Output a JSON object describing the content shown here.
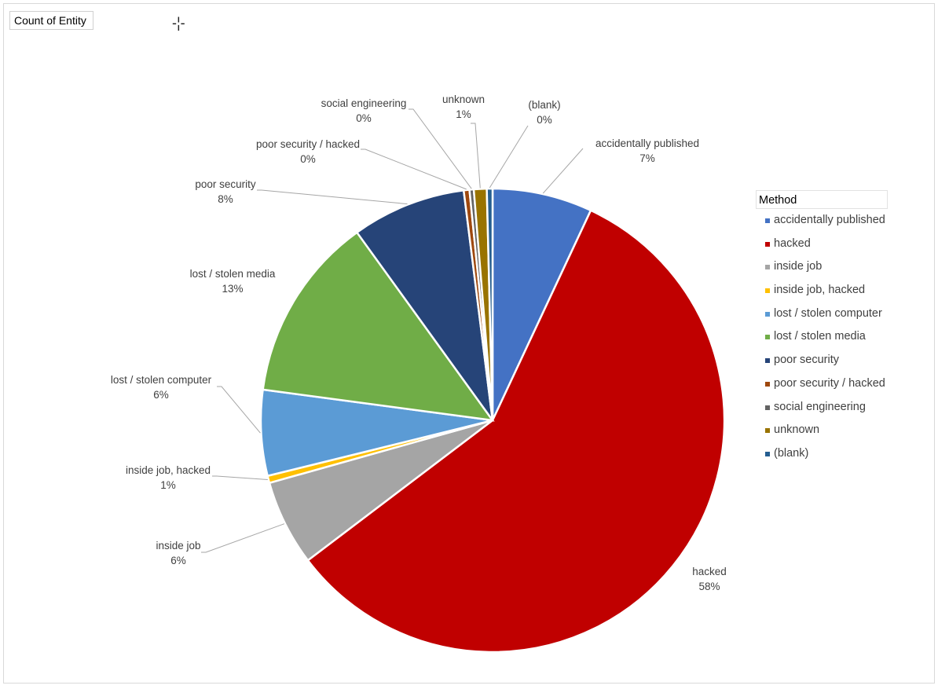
{
  "field_button": "Count of Entity",
  "legend_title": "Method",
  "chart_data": {
    "type": "pie",
    "title": "",
    "legend_position": "right",
    "slices": [
      {
        "name": "accidentally published",
        "value": 7,
        "label": "7%",
        "color": "#4472C4"
      },
      {
        "name": "hacked",
        "value": 58,
        "label": "58%",
        "color": "#C00000"
      },
      {
        "name": "inside job",
        "value": 6,
        "label": "6%",
        "color": "#A5A5A5"
      },
      {
        "name": "inside job, hacked",
        "value": 0.5,
        "label": "1%",
        "color": "#FFC000"
      },
      {
        "name": "lost / stolen computer",
        "value": 6,
        "label": "6%",
        "color": "#5B9BD5"
      },
      {
        "name": "lost / stolen media",
        "value": 13,
        "label": "13%",
        "color": "#70AD47"
      },
      {
        "name": "poor security",
        "value": 8,
        "label": "8%",
        "color": "#264478"
      },
      {
        "name": "poor security / hacked",
        "value": 0.4,
        "label": "0%",
        "color": "#9E480E"
      },
      {
        "name": "social engineering",
        "value": 0.3,
        "label": "0%",
        "color": "#636363"
      },
      {
        "name": "unknown",
        "value": 0.9,
        "label": "1%",
        "color": "#997300"
      },
      {
        "name": "(blank)",
        "value": 0.4,
        "label": "0%",
        "color": "#255E91"
      }
    ]
  }
}
